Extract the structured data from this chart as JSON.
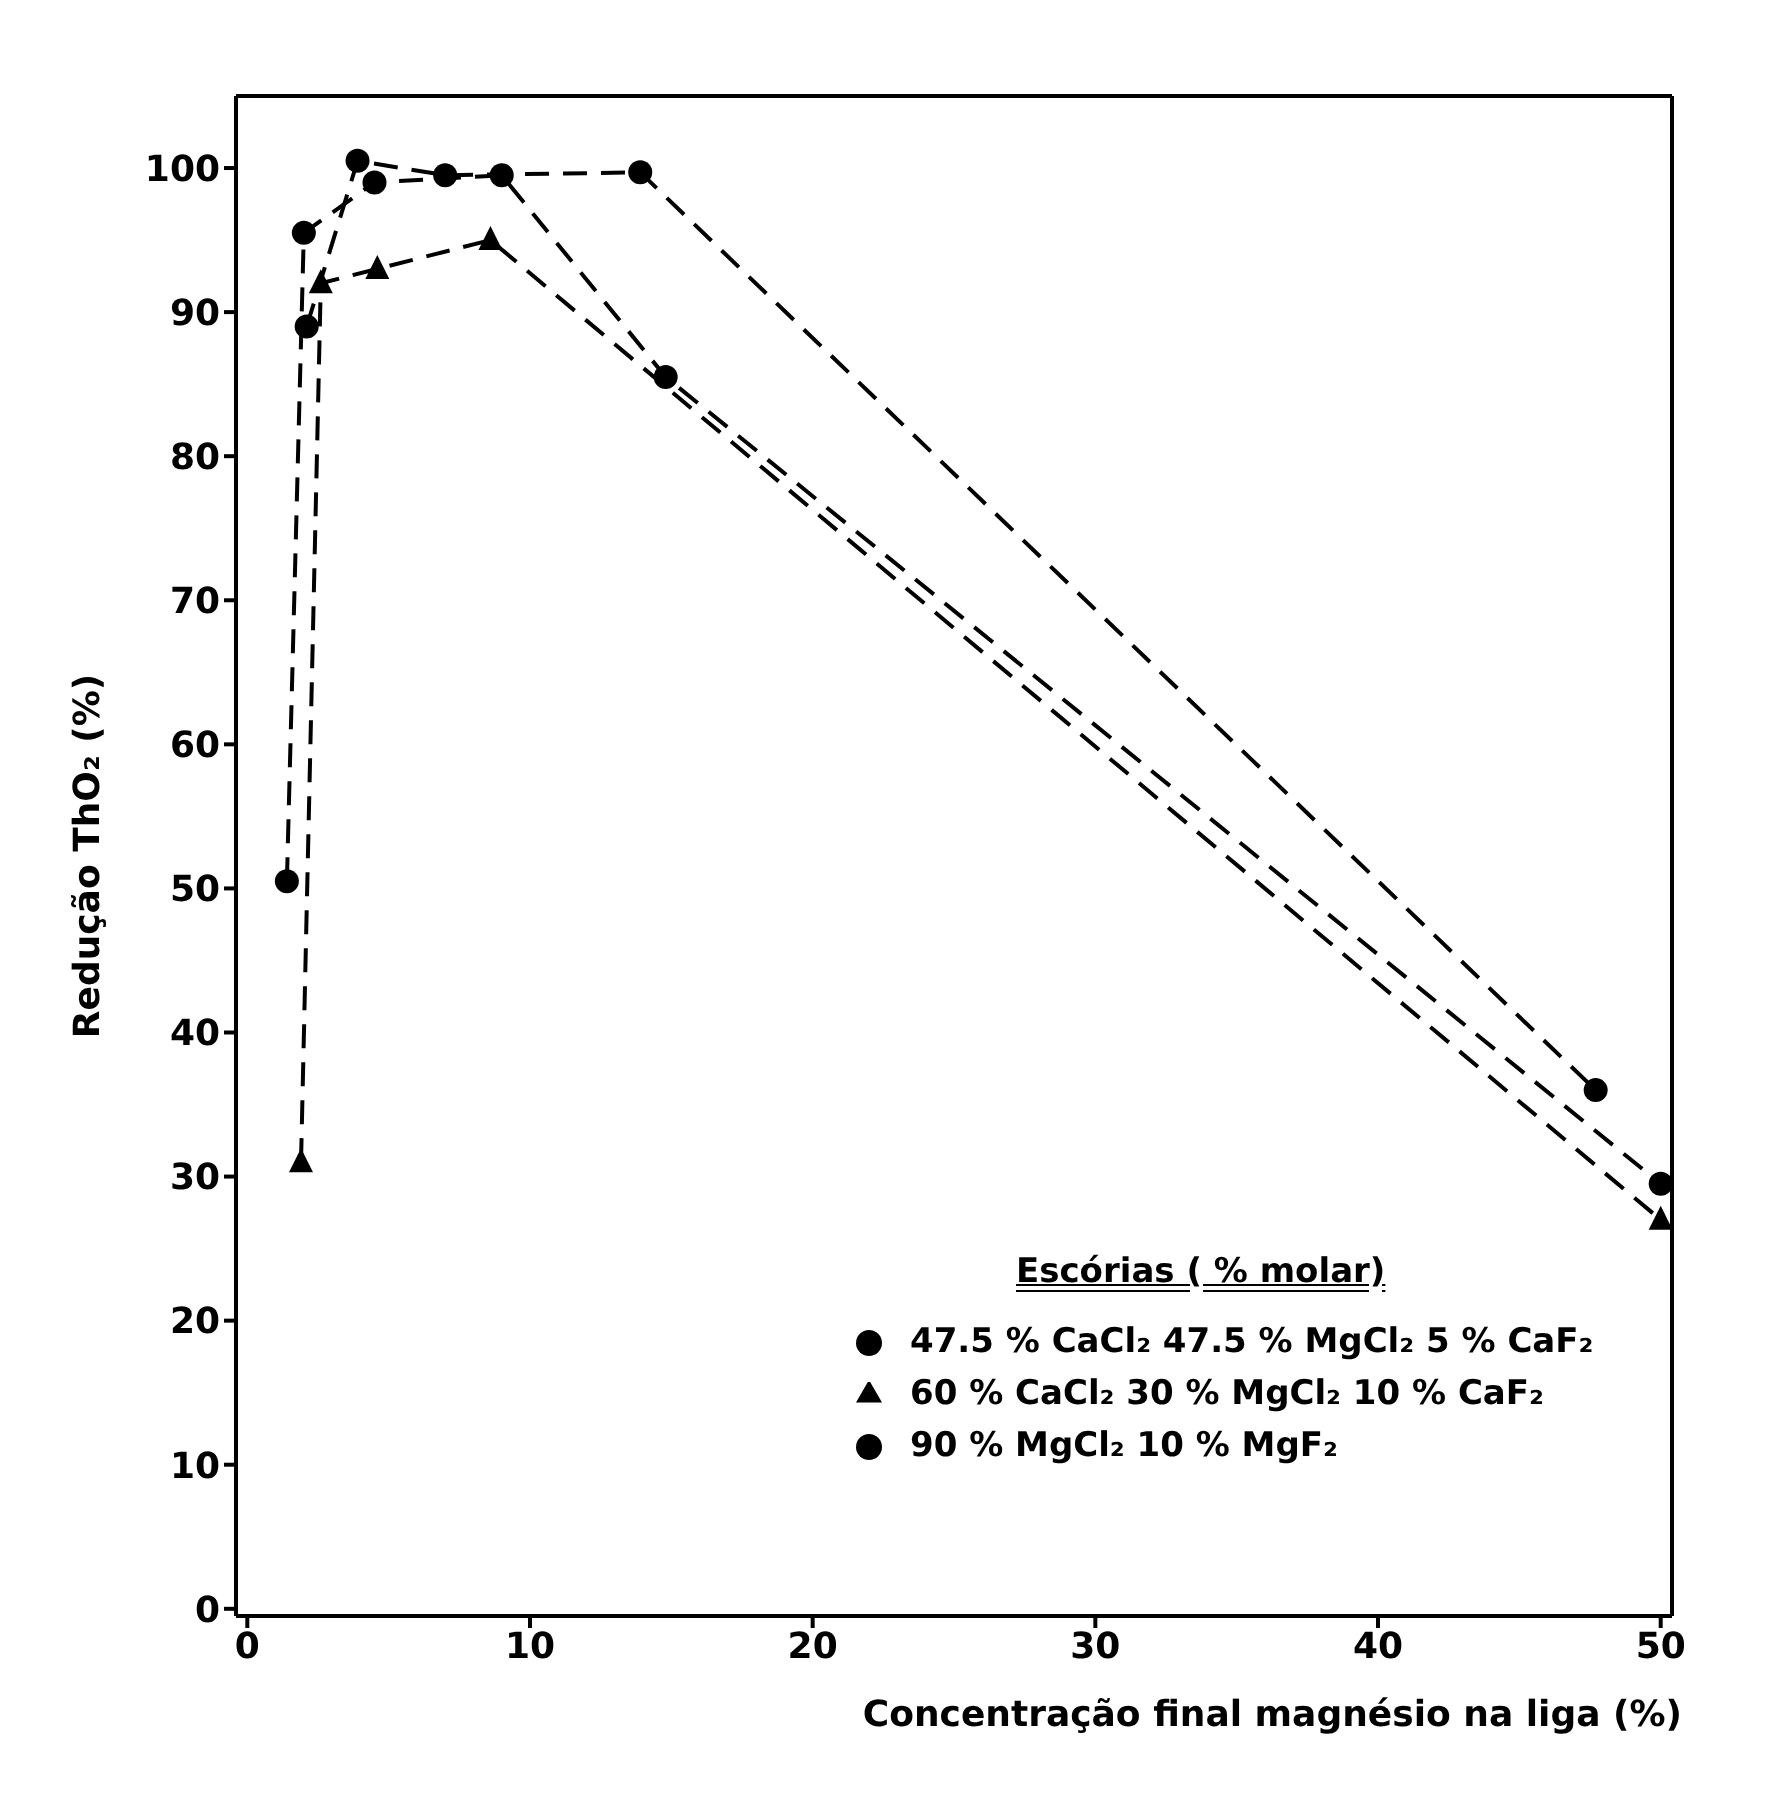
{
  "chart_data": {
    "type": "line",
    "xlabel": "Concentração final magnésio na liga (%)",
    "ylabel": "Redução   ThO₂   (%)",
    "legend_title": "Escórias ( % molar)",
    "xlim": [
      -0.4,
      50.4
    ],
    "ylim": [
      -0.5,
      105
    ],
    "xticks": [
      0,
      10,
      20,
      30,
      40,
      50
    ],
    "yticks": [
      0,
      10,
      20,
      30,
      40,
      50,
      60,
      70,
      80,
      90,
      100
    ],
    "grid": false,
    "legend": "bottom right",
    "line_style": "dashed",
    "series": [
      {
        "name": "60 % CaCl₂ 30 % MgCl₂ 10 % CaF₂",
        "color": "#000000",
        "marker": "triangle",
        "x": [
          1.9,
          2.6,
          4.6,
          8.6,
          50
        ],
        "values": [
          31,
          92,
          93,
          95,
          27
        ]
      },
      {
        "name": "47.5 % CaCl₂ 47.5 % MgCl₂ 5 % CaF₂",
        "color": "#000000",
        "marker": "circle",
        "x": [
          1.4,
          2.0,
          4.5,
          9.0,
          14.8,
          50
        ],
        "values": [
          50.5,
          95.5,
          99,
          99.5,
          85.5,
          29.5
        ]
      },
      {
        "name": "90 % MgCl₂ 10 % MgF₂",
        "color": "#000000",
        "marker": "circle",
        "x": [
          2.1,
          3.9,
          7.0,
          13.9,
          47.7
        ],
        "values": [
          89,
          100.5,
          99.5,
          99.7,
          36
        ]
      }
    ]
  }
}
